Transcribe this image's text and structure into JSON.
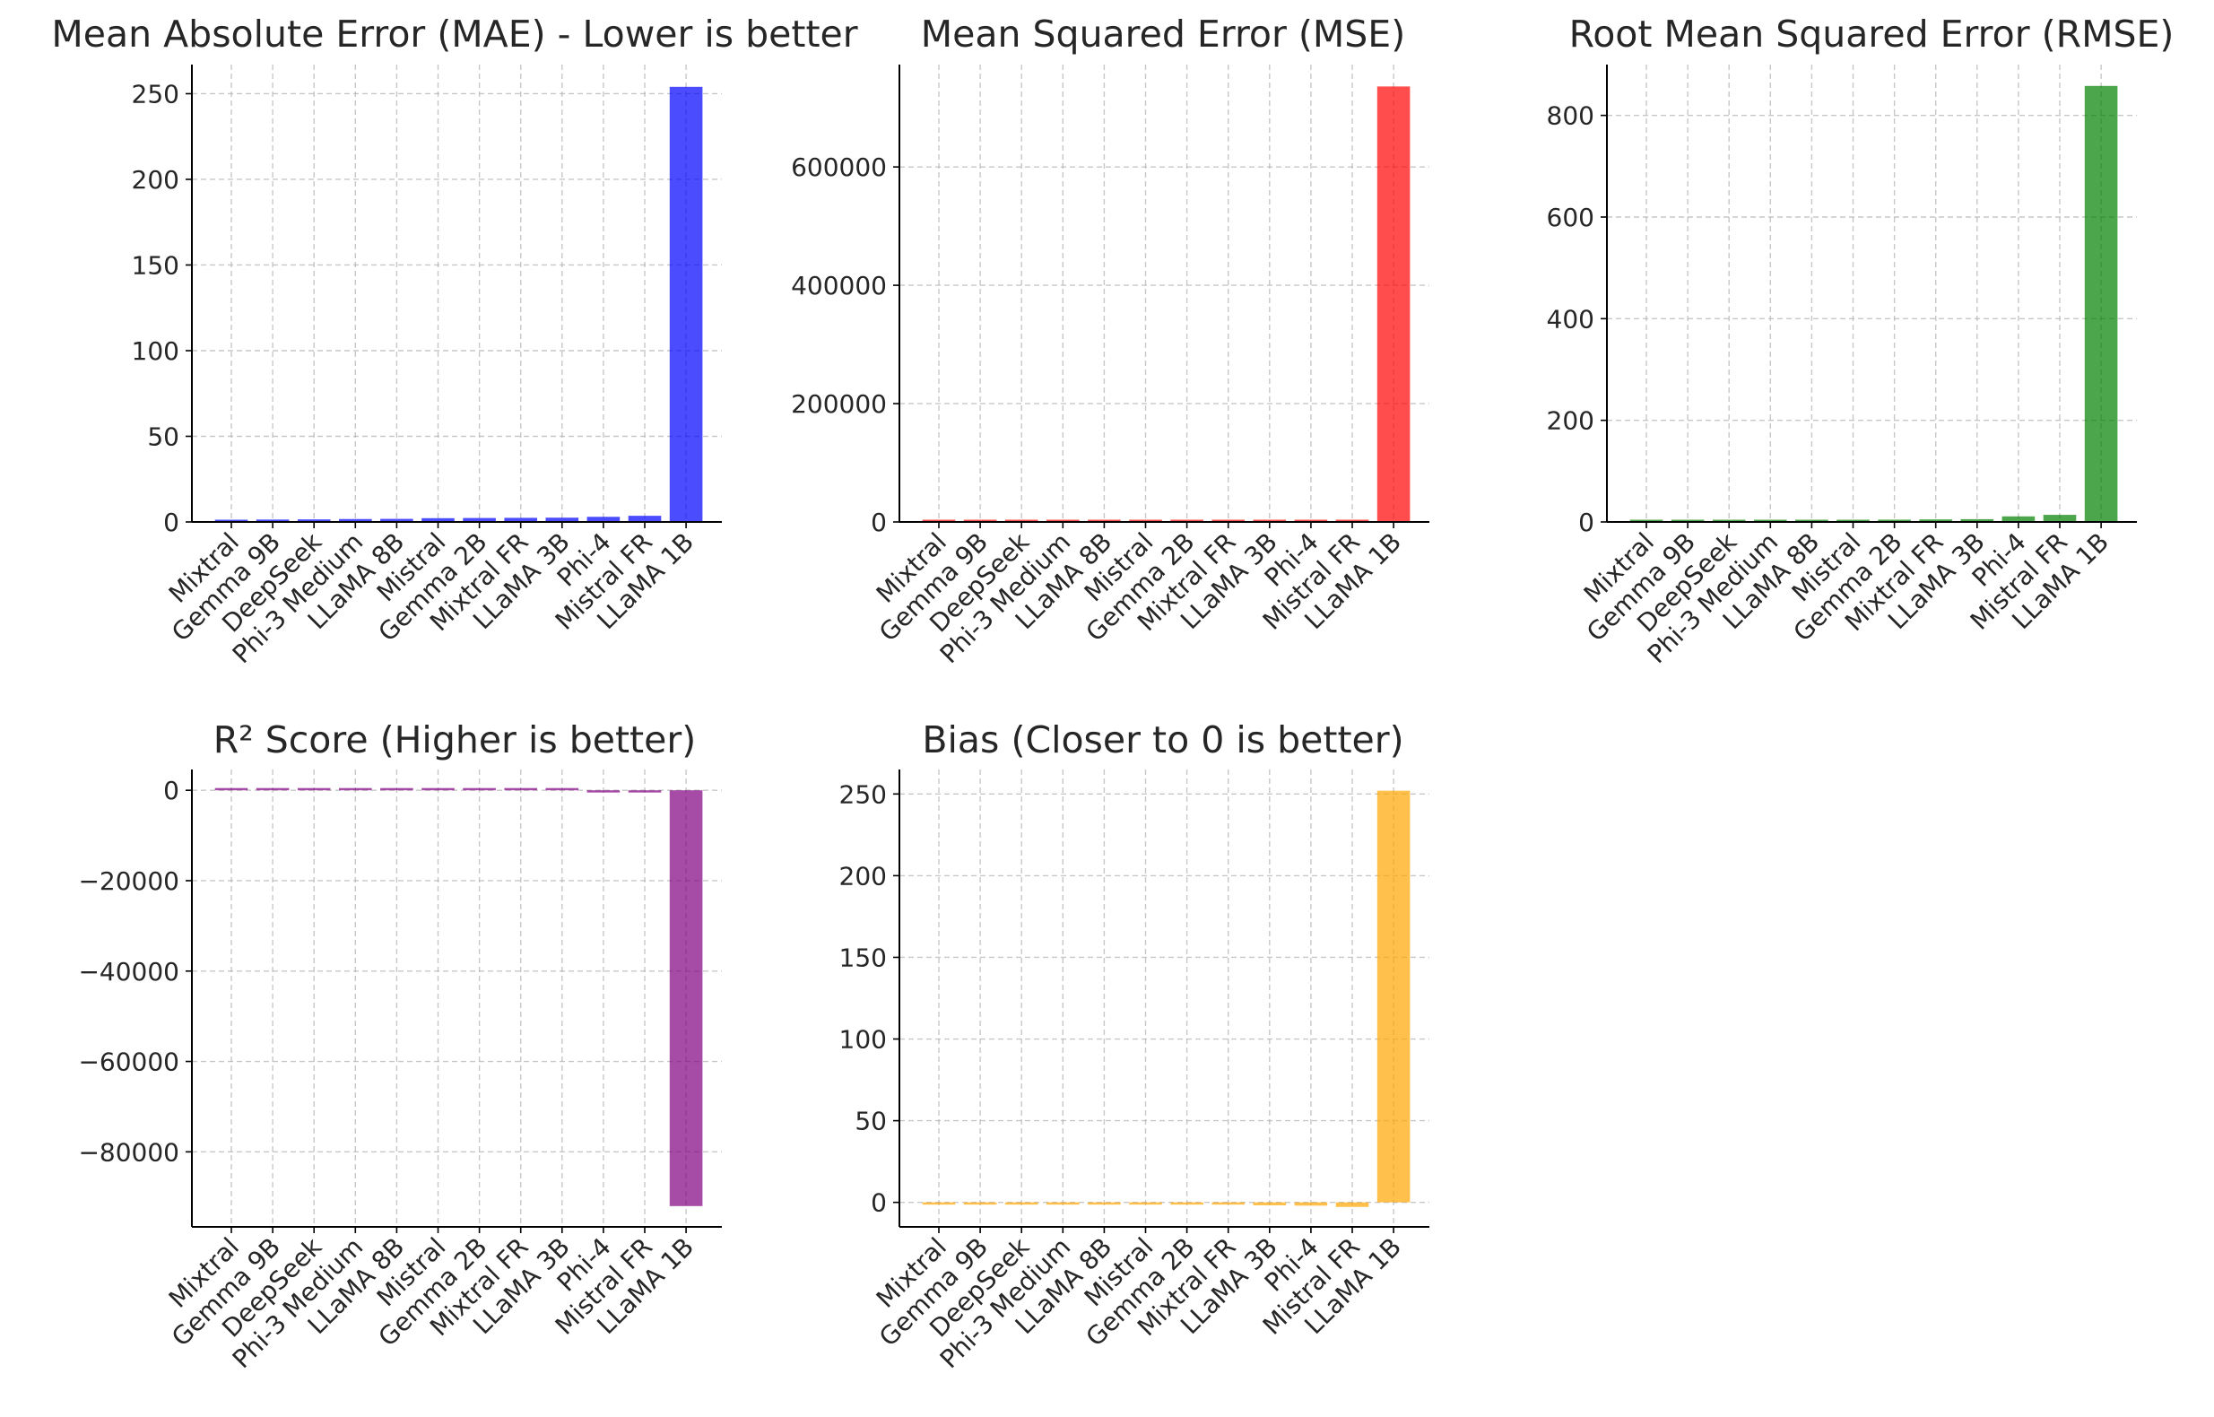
{
  "chart_data": [
    {
      "type": "bar",
      "title": "Mean Absolute Error (MAE) - Lower is better",
      "categories": [
        "Mixtral",
        "Gemma 9B",
        "DeepSeek",
        "Phi-3 Medium",
        "LLaMA 8B",
        "Mistral",
        "Gemma 2B",
        "Mixtral FR",
        "LLaMA 3B",
        "Phi-4",
        "Mistral FR",
        "LLaMA 1B"
      ],
      "values": [
        1.2,
        1.4,
        1.5,
        1.7,
        1.8,
        2.2,
        2.3,
        2.4,
        2.5,
        3.0,
        3.6,
        254
      ],
      "color": "#0000ff",
      "ylim": [
        0,
        267
      ],
      "yticks": [
        0,
        50,
        100,
        150,
        200,
        250
      ],
      "ytick_labels": [
        "0",
        "50",
        "100",
        "150",
        "200",
        "250"
      ],
      "grid": true
    },
    {
      "type": "bar",
      "title": "Mean Squared Error (MSE)",
      "categories": [
        "Mixtral",
        "Gemma 9B",
        "DeepSeek",
        "Phi-3 Medium",
        "LLaMA 8B",
        "Mistral",
        "Gemma 2B",
        "Mixtral FR",
        "LLaMA 3B",
        "Phi-4",
        "Mistral FR",
        "LLaMA 1B"
      ],
      "values": [
        5,
        8,
        9,
        10,
        12,
        18,
        20,
        25,
        30,
        120,
        200,
        736000
      ],
      "color": "#ff0000",
      "ylim": [
        0,
        773000
      ],
      "yticks": [
        0,
        200000,
        400000,
        600000
      ],
      "ytick_labels": [
        "0",
        "200000",
        "400000",
        "600000"
      ],
      "grid": true
    },
    {
      "type": "bar",
      "title": "Root Mean Squared Error (RMSE)",
      "categories": [
        "Mixtral",
        "Gemma 9B",
        "DeepSeek",
        "Phi-3 Medium",
        "LLaMA 8B",
        "Mistral",
        "Gemma 2B",
        "Mixtral FR",
        "LLaMA 3B",
        "Phi-4",
        "Mistral FR",
        "LLaMA 1B"
      ],
      "values": [
        2.2,
        2.8,
        3.0,
        3.2,
        3.5,
        4.2,
        4.5,
        5.0,
        5.5,
        11,
        14,
        858
      ],
      "color": "#008000",
      "ylim": [
        0,
        900
      ],
      "yticks": [
        0,
        200,
        400,
        600,
        800
      ],
      "ytick_labels": [
        "0",
        "200",
        "400",
        "600",
        "800"
      ],
      "grid": true
    },
    {
      "type": "bar",
      "title": "R² Score (Higher is better)",
      "categories": [
        "Mixtral",
        "Gemma 9B",
        "DeepSeek",
        "Phi-3 Medium",
        "LLaMA 8B",
        "Mistral",
        "Gemma 2B",
        "Mixtral FR",
        "LLaMA 3B",
        "Phi-4",
        "Mistral FR",
        "LLaMA 1B"
      ],
      "values": [
        0.9,
        0.8,
        0.8,
        0.7,
        0.7,
        0.6,
        0.6,
        0.5,
        0.4,
        -5,
        -10,
        -92000
      ],
      "color": "#800080",
      "ylim": [
        -96600,
        4600
      ],
      "yticks": [
        -80000,
        -60000,
        -40000,
        -20000,
        0
      ],
      "ytick_labels": [
        "−80000",
        "−60000",
        "−40000",
        "−20000",
        "0"
      ],
      "grid": true
    },
    {
      "type": "bar",
      "title": "Bias (Closer to 0 is better)",
      "categories": [
        "Mixtral",
        "Gemma 9B",
        "DeepSeek",
        "Phi-3 Medium",
        "LLaMA 8B",
        "Mistral",
        "Gemma 2B",
        "Mixtral FR",
        "LLaMA 3B",
        "Phi-4",
        "Mistral FR",
        "LLaMA 1B"
      ],
      "values": [
        -0.5,
        -1.0,
        -1.2,
        -0.3,
        -0.4,
        -1.0,
        -0.2,
        -1.3,
        -1.8,
        -2.0,
        -2.8,
        252
      ],
      "color": "#ffa500",
      "ylim": [
        -15,
        265
      ],
      "yticks": [
        0,
        50,
        100,
        150,
        200,
        250
      ],
      "ytick_labels": [
        "0",
        "50",
        "100",
        "150",
        "200",
        "250"
      ],
      "grid": true
    }
  ]
}
